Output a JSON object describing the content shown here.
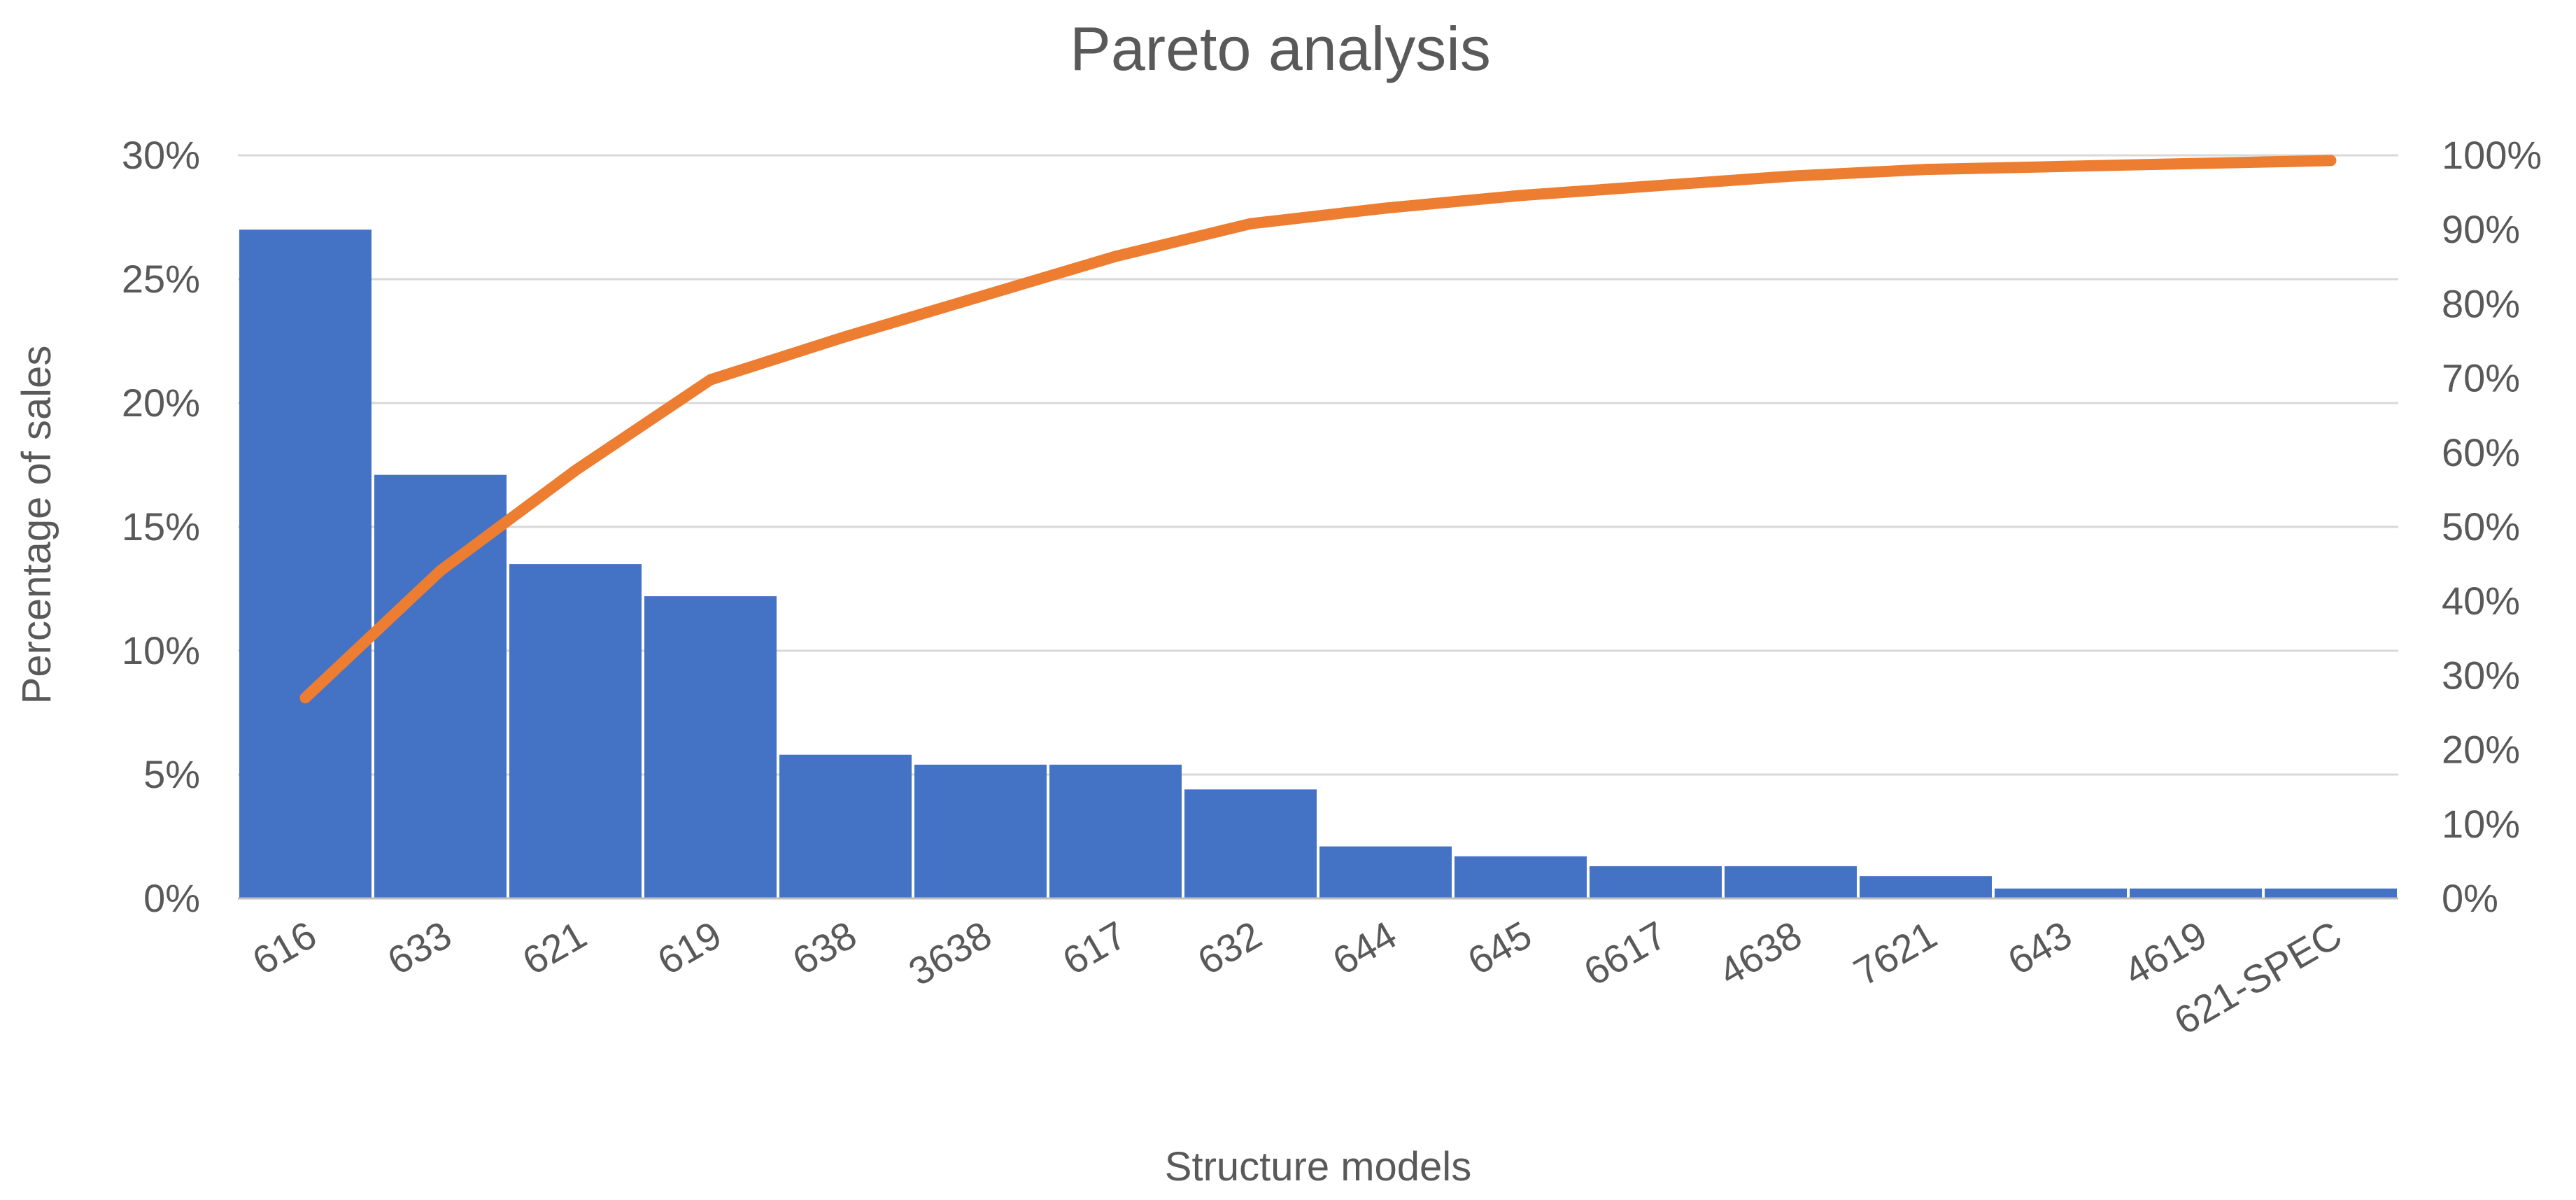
{
  "chart_data": {
    "type": "bar",
    "title": "Pareto analysis",
    "xlabel": "Structure models",
    "ylabel": "Percentage of sales",
    "y2label": "",
    "categories": [
      "616",
      "633",
      "621",
      "619",
      "638",
      "3638",
      "617",
      "632",
      "644",
      "645",
      "6617",
      "4638",
      "7621",
      "643",
      "4619",
      "621-SPEC"
    ],
    "series": [
      {
        "type": "bar",
        "axis": "left",
        "color": "#4472C4",
        "values": [
          27.0,
          17.1,
          13.5,
          12.2,
          5.8,
          5.4,
          5.4,
          4.4,
          2.1,
          1.7,
          1.3,
          1.3,
          0.9,
          0.4,
          0.4,
          0.4
        ]
      },
      {
        "type": "line",
        "axis": "right",
        "color": "#ED7D31",
        "values": [
          27.0,
          44.1,
          57.6,
          69.8,
          75.6,
          81.0,
          86.4,
          90.8,
          92.9,
          94.6,
          95.9,
          97.2,
          98.1,
          98.5,
          98.9,
          99.3
        ]
      }
    ],
    "ylim": [
      0,
      30
    ],
    "y_ticks": [
      "0%",
      "5%",
      "10%",
      "15%",
      "20%",
      "25%",
      "30%"
    ],
    "y2lim": [
      0,
      100
    ],
    "y2_ticks": [
      "0%",
      "10%",
      "20%",
      "30%",
      "40%",
      "50%",
      "60%",
      "70%",
      "80%",
      "90%",
      "100%"
    ],
    "grid": true,
    "legend": "none"
  }
}
